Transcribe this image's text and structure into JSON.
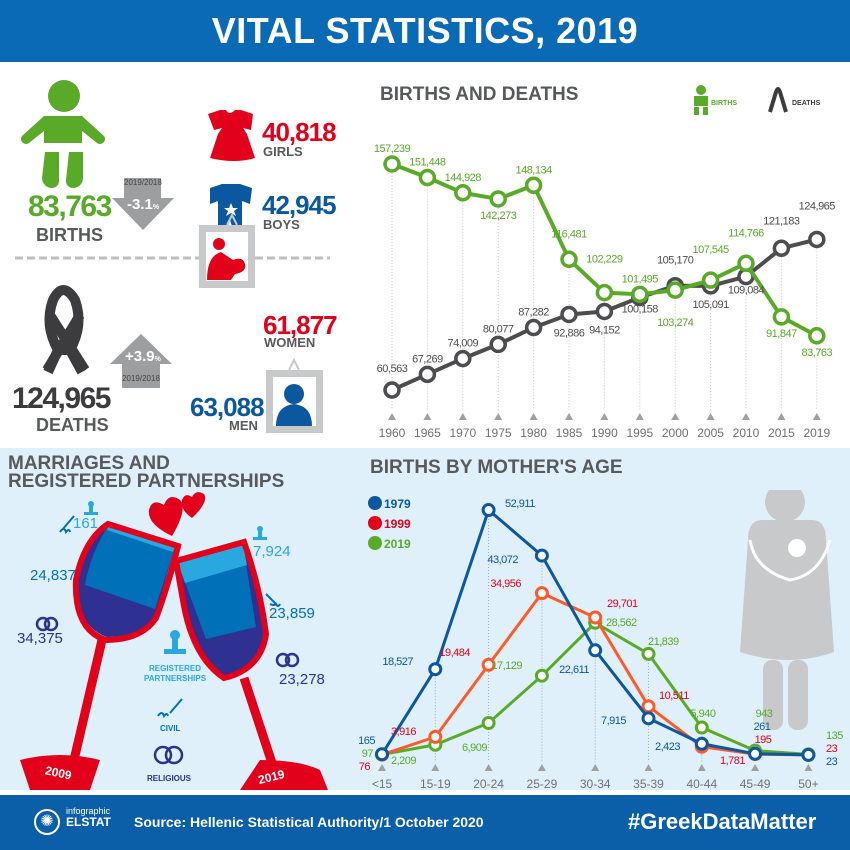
{
  "header": {
    "title": "VITAL STATISTICS, 2019"
  },
  "births": {
    "total": "83,763",
    "label": "BIRTHS",
    "change": "-3.1",
    "change_unit": "%",
    "change_period": "2019/2018",
    "girls": "40,818",
    "girls_label": "GIRLS",
    "boys": "42,945",
    "boys_label": "BOYS"
  },
  "deaths": {
    "total": "124,965",
    "label": "DEATHS",
    "change": "+3.9",
    "change_unit": "%",
    "change_period": "2019/2018",
    "women": "61,877",
    "women_label": "WOMEN",
    "men": "63,088",
    "men_label": "MEN"
  },
  "marriages": {
    "title_line1": "MARRIAGES AND",
    "title_line2": "REGISTERED PARTNERSHIPS",
    "y2009": {
      "year": "2009",
      "registered": "161",
      "civil": "24,837",
      "religious": "34,375"
    },
    "y2019": {
      "year": "2019",
      "registered": "7,924",
      "civil": "23,859",
      "religious": "23,278"
    },
    "legend": {
      "registered_line1": "REGISTERED",
      "registered_line2": "PARTNERSHIPS",
      "civil": "CIVIL",
      "religious": "RELIGIOUS"
    }
  },
  "colors": {
    "blue": "#0b6ab5",
    "green": "#5aaa2a",
    "dark": "#4d4d4f",
    "red": "#e2001a",
    "orange": "#ff5a2c",
    "navy": "#0b57a0"
  },
  "chart_data": [
    {
      "type": "line",
      "title": "BIRTHS AND DEATHS",
      "categories": [
        "1960",
        "1965",
        "1970",
        "1975",
        "1980",
        "1985",
        "1990",
        "1995",
        "2000",
        "2005",
        "2010",
        "2015",
        "2019"
      ],
      "legend": {
        "births": "BIRTHS",
        "deaths": "DEATHS"
      },
      "series": [
        {
          "name": "Births",
          "values": [
            157239,
            151448,
            144928,
            142273,
            148134,
            116481,
            102229,
            101495,
            103274,
            107545,
            114766,
            91847,
            83763
          ],
          "labels": [
            "157,239",
            "151,448",
            "144,928",
            "142,273",
            "148,134",
            "116,481",
            "102,229",
            "101,495",
            "103,274",
            "107,545",
            "114,766",
            "91,847",
            "83,763"
          ]
        },
        {
          "name": "Deaths",
          "values": [
            60563,
            67269,
            74009,
            80077,
            87282,
            92886,
            94152,
            100158,
            105170,
            105091,
            109084,
            121183,
            124965
          ],
          "labels": [
            "60,563",
            "67,269",
            "74,009",
            "80,077",
            "87,282",
            "92,886",
            "94,152",
            "100,158",
            "105,170",
            "105,091",
            "109,084",
            "121,183",
            "124,965"
          ]
        }
      ]
    },
    {
      "type": "line",
      "title": "BIRTHS BY MOTHER'S AGE",
      "categories": [
        "<15",
        "15-19",
        "20-24",
        "25-29",
        "30-34",
        "35-39",
        "40-44",
        "45-49",
        "50+"
      ],
      "series": [
        {
          "name": "1979",
          "values": [
            165,
            18527,
            52911,
            43072,
            22611,
            7915,
            2423,
            261,
            23
          ],
          "labels": [
            "165",
            "18,527",
            "52,911",
            "43,072",
            "22,611",
            "7,915",
            "2,423",
            "261",
            "23"
          ]
        },
        {
          "name": "1999",
          "values": [
            76,
            3916,
            19484,
            34956,
            29701,
            10511,
            1781,
            195,
            23
          ],
          "labels": [
            "76",
            "3,916",
            "19,484",
            "34,956",
            "29,701",
            "10,511",
            "1,781",
            "195",
            "23"
          ]
        },
        {
          "name": "2019",
          "values": [
            97,
            2209,
            6909,
            17129,
            28562,
            21839,
            5940,
            943,
            135
          ],
          "labels": [
            "97",
            "2,209",
            "6,909",
            "17,129",
            "28,562",
            "21,839",
            "5,940",
            "943",
            "135"
          ]
        }
      ]
    }
  ],
  "footer": {
    "logo_line1": "infographic",
    "logo_line2": "ELSTAT",
    "source": "Source: Hellenic Statistical Authority/1 October 2020",
    "hashtag": "#GreekDataMatter"
  }
}
